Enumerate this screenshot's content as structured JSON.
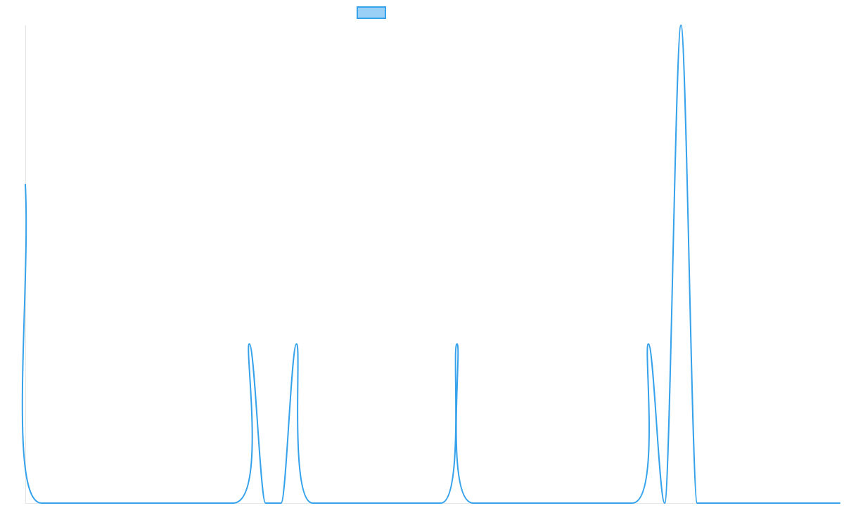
{
  "chart_data": {
    "type": "line",
    "title": "",
    "xlabel": "",
    "ylabel": "",
    "xlim": [
      0,
      100
    ],
    "ylim": [
      0,
      3
    ],
    "grid": false,
    "legend": "top",
    "series": [
      {
        "name": "",
        "color": "#36a2eb",
        "fill": "#9ad0f5",
        "x": [
          0,
          2,
          25.5,
          27.5,
          29.5,
          31.4,
          33.3,
          35.3,
          51,
          53,
          55,
          74.5,
          76.5,
          78.5,
          80.5,
          82.5,
          84.5,
          100
        ],
        "y": [
          2,
          0,
          0,
          1,
          0,
          0,
          1,
          0,
          0,
          1,
          0,
          0,
          1,
          0,
          3,
          0,
          0,
          0
        ]
      }
    ]
  }
}
